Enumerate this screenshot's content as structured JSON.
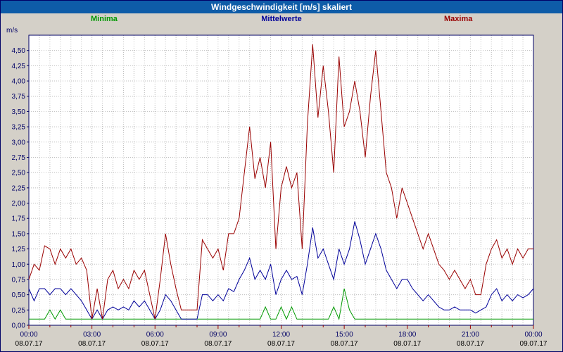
{
  "title": "Windgeschwindigkeit [m/s] skaliert",
  "legend": {
    "minima": "Minima",
    "mittelwerte": "Mittelwerte",
    "maxima": "Maxima"
  },
  "colors": {
    "minima": "#009900",
    "mittelwerte": "#000099",
    "maxima": "#990000",
    "titlebar": "#0e5ca8",
    "axis": "#000066",
    "grid": "#bdbdbd",
    "plot_bg": "#ffffff",
    "page_bg": "#d4d0c8",
    "tick_x": "#990000",
    "date_text": "#000000"
  },
  "chart_data": {
    "type": "line",
    "title": "Windgeschwindigkeit [m/s] skaliert",
    "y_unit": "m/s",
    "xlabel": "",
    "ylabel": "m/s",
    "ylim": [
      0,
      4.75
    ],
    "grid": true,
    "legend_position": "top",
    "y_tick_step": 0.25,
    "y_tick_labels": [
      "0,00",
      "0,25",
      "0,50",
      "0,75",
      "1,00",
      "1,25",
      "1,50",
      "1,75",
      "2,00",
      "2,25",
      "2,50",
      "2,75",
      "3,00",
      "3,25",
      "3,50",
      "3,75",
      "4,00",
      "4,25",
      "4,50"
    ],
    "x_hours_range": [
      0,
      24
    ],
    "x_step_hours": 0.25,
    "x_ticks": [
      {
        "time": "00:00",
        "date": "08.07.17"
      },
      {
        "time": "03:00",
        "date": "08.07.17"
      },
      {
        "time": "06:00",
        "date": "08.07.17"
      },
      {
        "time": "09:00",
        "date": "08.07.17"
      },
      {
        "time": "12:00",
        "date": "08.07.17"
      },
      {
        "time": "15:00",
        "date": "08.07.17"
      },
      {
        "time": "18:00",
        "date": "08.07.17"
      },
      {
        "time": "21:00",
        "date": "08.07.17"
      },
      {
        "time": "00:00",
        "date": "09.07.17"
      }
    ],
    "series": [
      {
        "name": "Minima",
        "color_key": "minima",
        "values": [
          0.1,
          0.1,
          0.1,
          0.1,
          0.25,
          0.1,
          0.25,
          0.1,
          0.1,
          0.1,
          0.1,
          0.1,
          0.1,
          0.1,
          0.1,
          0.1,
          0.1,
          0.1,
          0.1,
          0.1,
          0.1,
          0.1,
          0.1,
          0.1,
          0.1,
          0.1,
          0.1,
          0.1,
          0.1,
          0.1,
          0.1,
          0.1,
          0.1,
          0.1,
          0.1,
          0.1,
          0.1,
          0.1,
          0.1,
          0.1,
          0.1,
          0.1,
          0.1,
          0.1,
          0.1,
          0.3,
          0.1,
          0.1,
          0.3,
          0.1,
          0.3,
          0.1,
          0.1,
          0.1,
          0.1,
          0.1,
          0.1,
          0.1,
          0.3,
          0.1,
          0.6,
          0.25,
          0.1,
          0.1,
          0.1,
          0.1,
          0.1,
          0.1,
          0.1,
          0.1,
          0.1,
          0.1,
          0.1,
          0.1,
          0.1,
          0.1,
          0.1,
          0.1,
          0.1,
          0.1,
          0.1,
          0.1,
          0.1,
          0.1,
          0.1,
          0.1,
          0.1,
          0.1,
          0.1,
          0.1,
          0.1,
          0.1,
          0.1,
          0.1,
          0.1,
          0.1,
          0.1
        ]
      },
      {
        "name": "Mittelwerte",
        "color_key": "mittelwerte",
        "values": [
          0.6,
          0.4,
          0.6,
          0.6,
          0.5,
          0.6,
          0.6,
          0.5,
          0.6,
          0.5,
          0.4,
          0.25,
          0.1,
          0.25,
          0.1,
          0.25,
          0.3,
          0.25,
          0.3,
          0.25,
          0.4,
          0.3,
          0.4,
          0.25,
          0.1,
          0.25,
          0.5,
          0.4,
          0.25,
          0.1,
          0.1,
          0.1,
          0.1,
          0.5,
          0.5,
          0.4,
          0.5,
          0.4,
          0.6,
          0.55,
          0.75,
          0.9,
          1.1,
          0.75,
          0.9,
          0.75,
          1.0,
          0.5,
          0.75,
          0.9,
          0.75,
          0.8,
          0.5,
          1.0,
          1.6,
          1.1,
          1.25,
          1.0,
          0.75,
          1.25,
          1.0,
          1.25,
          1.7,
          1.4,
          1.0,
          1.25,
          1.5,
          1.25,
          0.9,
          0.75,
          0.6,
          0.75,
          0.75,
          0.6,
          0.5,
          0.4,
          0.5,
          0.4,
          0.3,
          0.25,
          0.25,
          0.3,
          0.25,
          0.25,
          0.25,
          0.2,
          0.25,
          0.3,
          0.5,
          0.6,
          0.4,
          0.5,
          0.4,
          0.5,
          0.45,
          0.5,
          0.6
        ]
      },
      {
        "name": "Maxima",
        "color_key": "maxima",
        "values": [
          0.75,
          1.0,
          0.9,
          1.3,
          1.25,
          1.0,
          1.25,
          1.1,
          1.25,
          1.0,
          1.1,
          0.9,
          0.1,
          0.6,
          0.1,
          0.75,
          0.9,
          0.6,
          0.75,
          0.6,
          0.9,
          0.75,
          0.9,
          0.5,
          0.1,
          0.75,
          1.5,
          1.0,
          0.6,
          0.25,
          0.25,
          0.25,
          0.25,
          1.4,
          1.25,
          1.1,
          1.25,
          0.9,
          1.5,
          1.5,
          1.75,
          2.5,
          3.25,
          2.4,
          2.75,
          2.25,
          3.0,
          1.25,
          2.25,
          2.6,
          2.25,
          2.5,
          1.25,
          3.3,
          4.6,
          3.4,
          4.25,
          3.5,
          2.5,
          4.4,
          3.25,
          3.5,
          4.0,
          3.5,
          2.75,
          3.75,
          4.5,
          3.5,
          2.5,
          2.25,
          1.75,
          2.25,
          2.0,
          1.75,
          1.5,
          1.25,
          1.5,
          1.25,
          1.0,
          0.9,
          0.75,
          0.9,
          0.75,
          0.6,
          0.75,
          0.5,
          0.5,
          1.0,
          1.25,
          1.4,
          1.1,
          1.25,
          1.0,
          1.25,
          1.1,
          1.25,
          1.25
        ]
      }
    ]
  }
}
